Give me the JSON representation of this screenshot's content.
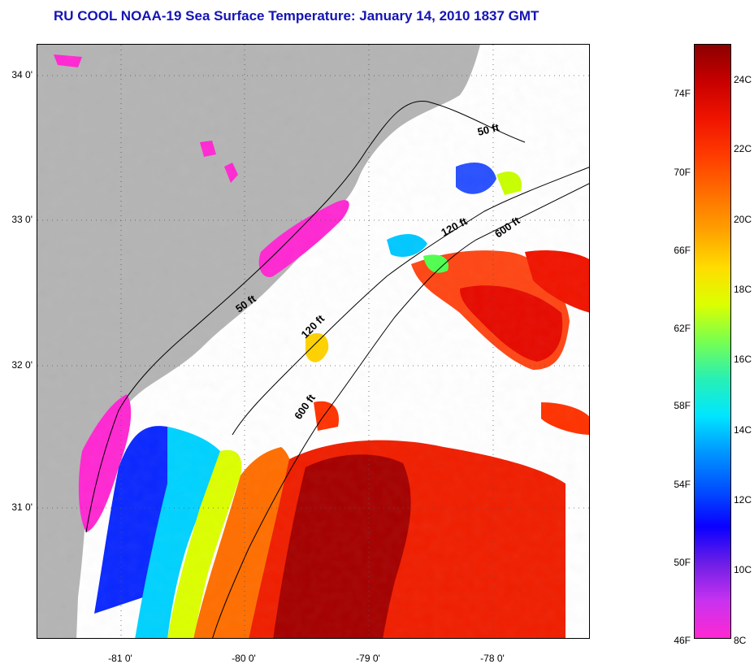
{
  "title": "RU COOL  NOAA-19  Sea Surface Temperature:  January 14, 2010 1837 GMT",
  "map": {
    "latitude_labels": [
      "34 0'",
      "33 0'",
      "32 0'",
      "31 0'"
    ],
    "longitude_labels": [
      "-81 0'",
      "-80 0'",
      "-79 0'",
      "-78 0'"
    ],
    "depth_contours": [
      {
        "label": "50 ft"
      },
      {
        "label": "120 ft"
      },
      {
        "label": "600 ft"
      },
      {
        "label": "50 ft"
      },
      {
        "label": "120 ft"
      },
      {
        "label": "600 ft"
      }
    ],
    "colors": {
      "land": "#b4b4b4",
      "water_no_data": "#ffffff"
    }
  },
  "colorbar": {
    "fahrenheit_labels": [
      "74F",
      "70F",
      "66F",
      "62F",
      "58F",
      "54F",
      "50F",
      "46F"
    ],
    "celsius_labels": [
      "24C",
      "22C",
      "20C",
      "18C",
      "16C",
      "14C",
      "12C",
      "10C",
      "8C"
    ],
    "gradient": [
      "#ff28d2",
      "#c832f0",
      "#6e1ee6",
      "#0a00ff",
      "#0050ff",
      "#0096ff",
      "#00e6ff",
      "#28f0b4",
      "#78ff50",
      "#dcff00",
      "#ffdc00",
      "#ffa000",
      "#ff6e00",
      "#ff3c00",
      "#f01400",
      "#c80000",
      "#8c0000"
    ]
  }
}
